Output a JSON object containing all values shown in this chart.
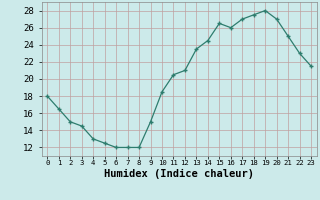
{
  "x": [
    0,
    1,
    2,
    3,
    4,
    5,
    6,
    7,
    8,
    9,
    10,
    11,
    12,
    13,
    14,
    15,
    16,
    17,
    18,
    19,
    20,
    21,
    22,
    23
  ],
  "y": [
    18,
    16.5,
    15,
    14.5,
    13,
    12.5,
    12,
    12,
    12,
    15,
    18.5,
    20.5,
    21,
    23.5,
    24.5,
    26.5,
    26,
    27,
    27.5,
    28,
    27,
    25,
    23,
    21.5
  ],
  "line_color": "#2e7d6e",
  "marker": "+",
  "marker_size": 3,
  "marker_lw": 1.0,
  "line_width": 0.9,
  "bg_color": "#cceaea",
  "grid_color": "#c0a0a0",
  "xlabel": "Humidex (Indice chaleur)",
  "xlabel_fontsize": 7.5,
  "tick_fontsize": 6.5,
  "xlim": [
    -0.5,
    23.5
  ],
  "ylim": [
    11,
    29
  ],
  "yticks": [
    12,
    14,
    16,
    18,
    20,
    22,
    24,
    26,
    28
  ],
  "xtick_labels": [
    "0",
    "1",
    "2",
    "3",
    "4",
    "5",
    "6",
    "7",
    "8",
    "9",
    "10",
    "11",
    "12",
    "13",
    "14",
    "15",
    "16",
    "17",
    "18",
    "19",
    "20",
    "21",
    "22",
    "23"
  ]
}
